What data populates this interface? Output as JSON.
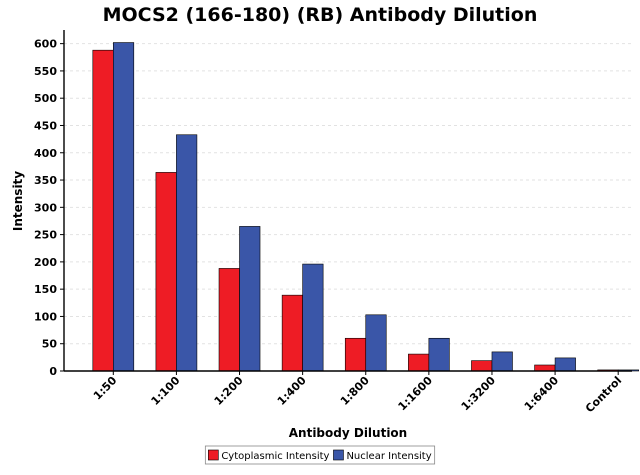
{
  "chart_data": {
    "type": "bar",
    "title": "MOCS2 (166-180) (RB) Antibody Dilution",
    "xlabel": "Antibody Dilution",
    "ylabel": "Intensity",
    "categories": [
      "1:50",
      "1:100",
      "1:200",
      "1:400",
      "1:800",
      "1:1600",
      "1:3200",
      "1:6400",
      "Control"
    ],
    "series": [
      {
        "name": "Cytoplasmic Intensity",
        "color": "#ee1c25",
        "values": [
          588,
          364,
          188,
          139,
          60,
          31,
          19,
          11,
          2
        ]
      },
      {
        "name": "Nuclear Intensity",
        "color": "#3a56a8",
        "values": [
          602,
          433,
          265,
          196,
          103,
          60,
          35,
          24,
          2
        ]
      }
    ],
    "ylim": [
      0,
      625
    ],
    "yticks": [
      0,
      50,
      100,
      150,
      200,
      250,
      300,
      350,
      400,
      450,
      500,
      550,
      600
    ],
    "grid": true,
    "legend_position": "bottom-center"
  }
}
